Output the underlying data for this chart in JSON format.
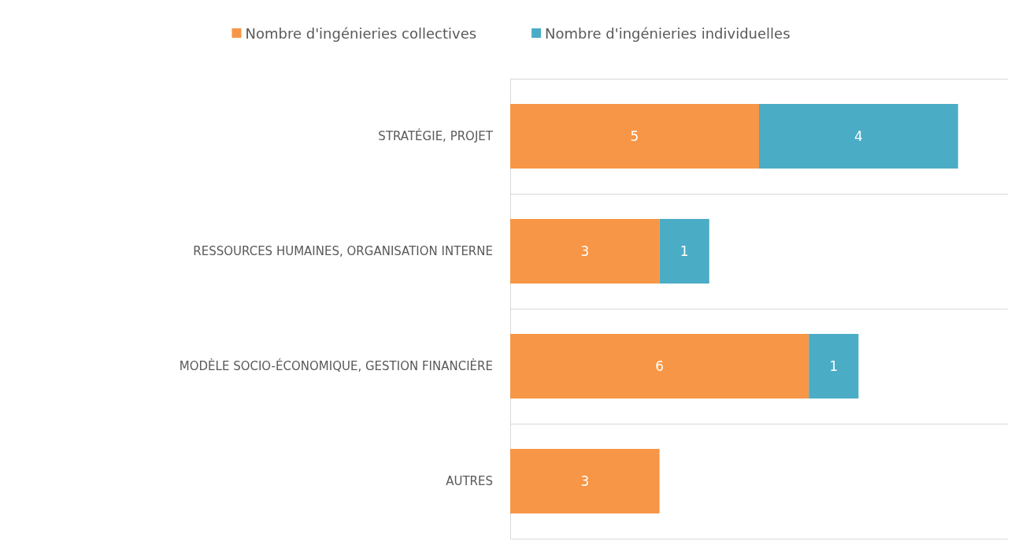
{
  "chart_data": {
    "type": "bar",
    "orientation": "horizontal",
    "stacked": true,
    "categories": [
      "STRATÉGIE, PROJET",
      "RESSOURCES HUMAINES, ORGANISATION INTERNE",
      "MODÈLE SOCIO-ÉCONOMIQUE, GESTION FINANCIÈRE",
      "AUTRES"
    ],
    "series": [
      {
        "name": "Nombre d'ingénieries collectives",
        "color": "#f79646",
        "values": [
          5,
          3,
          6,
          3
        ]
      },
      {
        "name": "Nombre d'ingénieries individuelles",
        "color": "#4bacc6",
        "values": [
          4,
          1,
          1,
          null
        ]
      }
    ],
    "data_labels": true,
    "grid": "y",
    "legend": "top"
  }
}
